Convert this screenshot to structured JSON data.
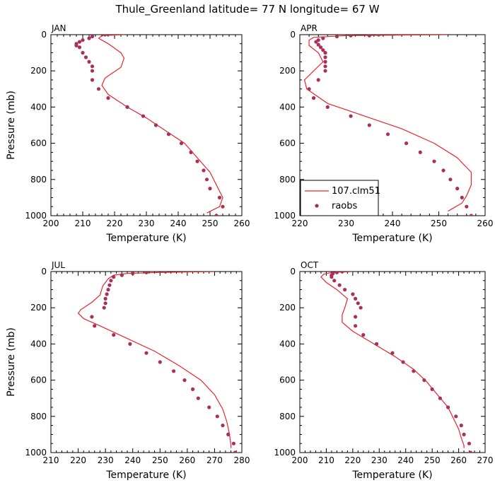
{
  "title": "Thule_Greenland  latitude= 77 N longitude= 67 W",
  "colors": {
    "model": "#e8262b",
    "obs": "#a8305a"
  },
  "legend": {
    "model_label": "107.clm51",
    "obs_label": "raobs",
    "panel": "APR"
  },
  "chart_data": [
    {
      "type": "line",
      "label": "JAN",
      "xlabel": "Temperature (K)",
      "ylabel": "Pressure (mb)",
      "xlim": [
        200,
        260
      ],
      "ylim": [
        0,
        1000
      ],
      "y_inverted": true,
      "xticks": [
        200,
        210,
        220,
        230,
        240,
        250,
        260
      ],
      "yticks": [
        0,
        200,
        400,
        600,
        800,
        1000
      ],
      "series": [
        {
          "name": "107.clm51",
          "style": "line",
          "points": [
            [
              223,
              0
            ],
            [
              216,
              5
            ],
            [
              215,
              20
            ],
            [
              218,
              50
            ],
            [
              222,
              100
            ],
            [
              223,
              130
            ],
            [
              222,
              180
            ],
            [
              217,
              240
            ],
            [
              216,
              280
            ],
            [
              218,
              330
            ],
            [
              224,
              400
            ],
            [
              230,
              460
            ],
            [
              236,
              530
            ],
            [
              242,
              600
            ],
            [
              246,
              680
            ],
            [
              250,
              760
            ],
            [
              252,
              830
            ],
            [
              254,
              900
            ],
            [
              253,
              950
            ],
            [
              249,
              985
            ]
          ]
        },
        {
          "name": "raobs",
          "style": "points",
          "points": [
            [
              217,
              0
            ],
            [
              213,
              10
            ],
            [
              212,
              20
            ],
            [
              210,
              30
            ],
            [
              209,
              40
            ],
            [
              208,
              50
            ],
            [
              208,
              60
            ],
            [
              209,
              70
            ],
            [
              210,
              100
            ],
            [
              211,
              125
            ],
            [
              212,
              150
            ],
            [
              213,
              175
            ],
            [
              213,
              200
            ],
            [
              213,
              250
            ],
            [
              215,
              300
            ],
            [
              218,
              350
            ],
            [
              224,
              400
            ],
            [
              229,
              450
            ],
            [
              233,
              500
            ],
            [
              237,
              550
            ],
            [
              241,
              600
            ],
            [
              244,
              650
            ],
            [
              246,
              700
            ],
            [
              248,
              750
            ],
            [
              249,
              800
            ],
            [
              250,
              850
            ],
            [
              253,
              900
            ],
            [
              254,
              950
            ],
            [
              252,
              1000
            ]
          ]
        }
      ]
    },
    {
      "type": "line",
      "label": "APR",
      "xlabel": "Temperature (K)",
      "ylabel": "",
      "xlim": [
        220,
        260
      ],
      "ylim": [
        0,
        1000
      ],
      "y_inverted": true,
      "xticks": [
        220,
        230,
        240,
        250,
        260
      ],
      "yticks": [
        0,
        200,
        400,
        600,
        800,
        1000
      ],
      "series": [
        {
          "name": "107.clm51",
          "style": "line",
          "points": [
            [
              252,
              0
            ],
            [
              230,
              5
            ],
            [
              223,
              15
            ],
            [
              222,
              30
            ],
            [
              222,
              60
            ],
            [
              224,
              100
            ],
            [
              225,
              150
            ],
            [
              223,
              200
            ],
            [
              221,
              250
            ],
            [
              221.5,
              300
            ],
            [
              226,
              380
            ],
            [
              234,
              450
            ],
            [
              242,
              520
            ],
            [
              249,
              600
            ],
            [
              254,
              680
            ],
            [
              257,
              760
            ],
            [
              257,
              830
            ],
            [
              256,
              890
            ],
            [
              255,
              930
            ],
            [
              253,
              960
            ],
            [
              252,
              975
            ]
          ]
        },
        {
          "name": "raobs",
          "style": "points",
          "points": [
            [
              237,
              0
            ],
            [
              235,
              5
            ],
            [
              231,
              5
            ],
            [
              228,
              10
            ],
            [
              225,
              20
            ],
            [
              224,
              30
            ],
            [
              223.5,
              40
            ],
            [
              224,
              55
            ],
            [
              224.5,
              70
            ],
            [
              225,
              85
            ],
            [
              225.5,
              100
            ],
            [
              225.5,
              125
            ],
            [
              225.5,
              150
            ],
            [
              225.5,
              175
            ],
            [
              225.5,
              200
            ],
            [
              224,
              250
            ],
            [
              222,
              300
            ],
            [
              223,
              350
            ],
            [
              226,
              400
            ],
            [
              231,
              450
            ],
            [
              235,
              500
            ],
            [
              239,
              550
            ],
            [
              243,
              600
            ],
            [
              246,
              650
            ],
            [
              249,
              700
            ],
            [
              251,
              750
            ],
            [
              252.5,
              800
            ],
            [
              254,
              850
            ],
            [
              255,
              900
            ],
            [
              256,
              950
            ],
            [
              257,
              1000
            ]
          ]
        }
      ]
    },
    {
      "type": "line",
      "label": "JUL",
      "xlabel": "Temperature (K)",
      "ylabel": "Pressure (mb)",
      "xlim": [
        210,
        280
      ],
      "ylim": [
        0,
        1000
      ],
      "y_inverted": true,
      "xticks": [
        210,
        220,
        230,
        240,
        250,
        260,
        270,
        280
      ],
      "yticks": [
        0,
        200,
        400,
        600,
        800,
        1000
      ],
      "series": [
        {
          "name": "107.clm51",
          "style": "line",
          "points": [
            [
              270,
              0
            ],
            [
              250,
              5
            ],
            [
              238,
              10
            ],
            [
              233,
              20
            ],
            [
              231,
              40
            ],
            [
              229,
              80
            ],
            [
              228,
              130
            ],
            [
              225,
              170
            ],
            [
              221,
              210
            ],
            [
              220,
              230
            ],
            [
              222,
              260
            ],
            [
              228,
              300
            ],
            [
              238,
              370
            ],
            [
              248,
              440
            ],
            [
              257,
              520
            ],
            [
              265,
              600
            ],
            [
              270,
              680
            ],
            [
              273,
              760
            ],
            [
              274.5,
              830
            ],
            [
              275.5,
              900
            ],
            [
              276,
              960
            ],
            [
              276,
              975
            ]
          ]
        },
        {
          "name": "raobs",
          "style": "points",
          "points": [
            [
              252,
              0
            ],
            [
              245,
              5
            ],
            [
              240,
              10
            ],
            [
              236,
              20
            ],
            [
              233,
              30
            ],
            [
              232,
              50
            ],
            [
              231.5,
              75
            ],
            [
              231,
              100
            ],
            [
              230.5,
              125
            ],
            [
              230,
              150
            ],
            [
              230,
              175
            ],
            [
              229.5,
              200
            ],
            [
              225,
              250
            ],
            [
              226,
              300
            ],
            [
              233,
              350
            ],
            [
              239,
              400
            ],
            [
              245,
              450
            ],
            [
              250,
              500
            ],
            [
              255,
              550
            ],
            [
              259,
              600
            ],
            [
              262,
              650
            ],
            [
              264,
              700
            ],
            [
              268,
              750
            ],
            [
              271,
              800
            ],
            [
              273,
              850
            ],
            [
              275,
              900
            ],
            [
              277,
              950
            ],
            [
              277.5,
              1000
            ]
          ]
        }
      ]
    },
    {
      "type": "line",
      "label": "OCT",
      "xlabel": "Temperature (K)",
      "ylabel": "",
      "xlim": [
        200,
        270
      ],
      "ylim": [
        0,
        1000
      ],
      "y_inverted": true,
      "xticks": [
        200,
        210,
        220,
        230,
        240,
        250,
        260,
        270
      ],
      "yticks": [
        0,
        200,
        400,
        600,
        800,
        1000
      ],
      "series": [
        {
          "name": "107.clm51",
          "style": "line",
          "points": [
            [
              220,
              0
            ],
            [
              212,
              5
            ],
            [
              209,
              15
            ],
            [
              208,
              30
            ],
            [
              210,
              60
            ],
            [
              214,
              100
            ],
            [
              218,
              150
            ],
            [
              217,
              200
            ],
            [
              216,
              240
            ],
            [
              216,
              280
            ],
            [
              220,
              330
            ],
            [
              228,
              400
            ],
            [
              236,
              470
            ],
            [
              243,
              540
            ],
            [
              248,
              610
            ],
            [
              252,
              680
            ],
            [
              256,
              750
            ],
            [
              258,
              810
            ],
            [
              260,
              870
            ],
            [
              261,
              920
            ],
            [
              262,
              960
            ],
            [
              262,
              975
            ]
          ]
        },
        {
          "name": "raobs",
          "style": "points",
          "points": [
            [
              216,
              0
            ],
            [
              214,
              5
            ],
            [
              212.5,
              10
            ],
            [
              212,
              20
            ],
            [
              212,
              30
            ],
            [
              213,
              50
            ],
            [
              215,
              75
            ],
            [
              217,
              100
            ],
            [
              220,
              125
            ],
            [
              221,
              150
            ],
            [
              222,
              175
            ],
            [
              223,
              200
            ],
            [
              221,
              250
            ],
            [
              221,
              300
            ],
            [
              224,
              350
            ],
            [
              229,
              400
            ],
            [
              235,
              450
            ],
            [
              239,
              500
            ],
            [
              243,
              550
            ],
            [
              247,
              600
            ],
            [
              250,
              650
            ],
            [
              253,
              700
            ],
            [
              256,
              750
            ],
            [
              259,
              800
            ],
            [
              261,
              850
            ],
            [
              262,
              900
            ],
            [
              264,
              950
            ],
            [
              264.5,
              1000
            ]
          ]
        }
      ]
    }
  ]
}
